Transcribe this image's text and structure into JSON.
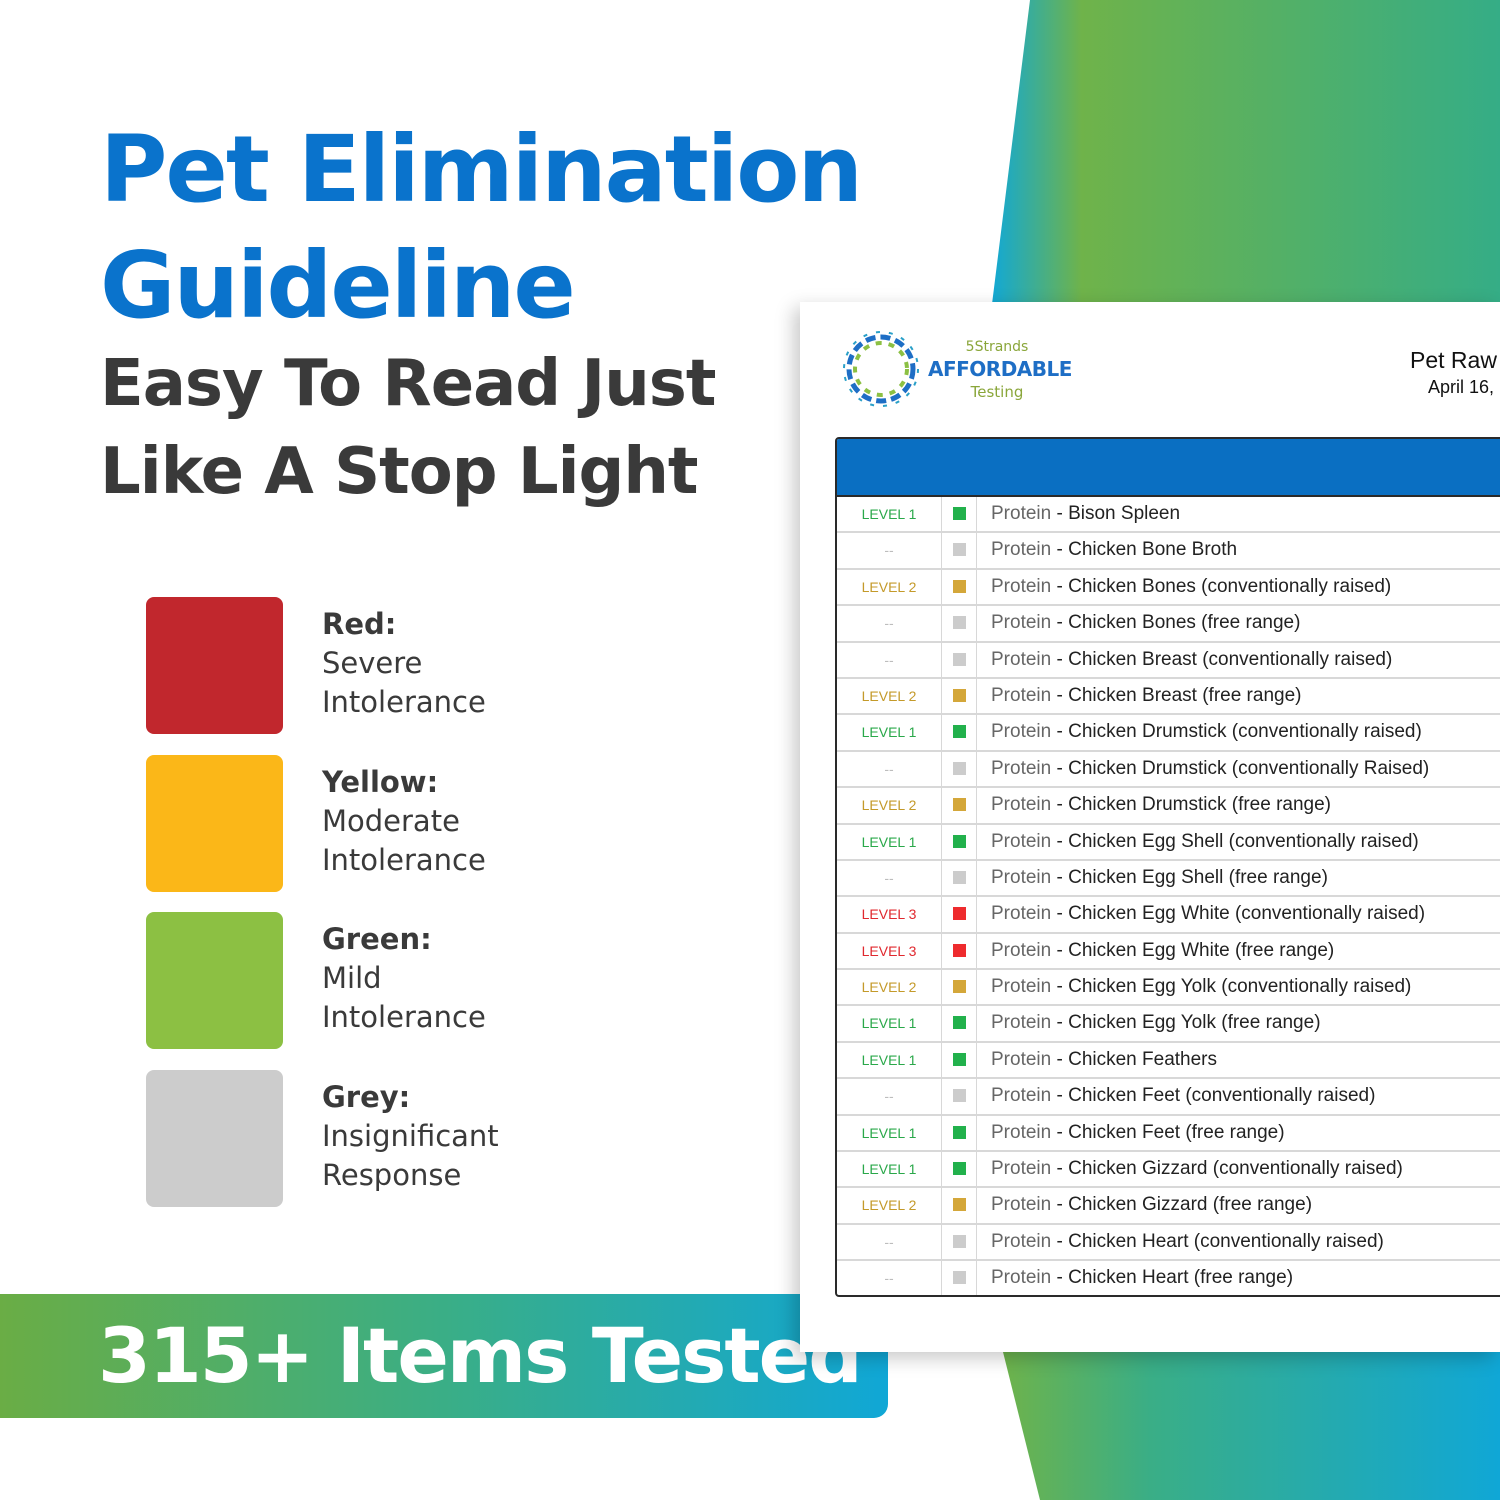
{
  "title_lines": [
    "Pet Elimination",
    "Guideline"
  ],
  "subtitle_lines": [
    "Easy To Read Just",
    "Like A Stop Light"
  ],
  "legend": [
    {
      "name": "Red:",
      "desc": [
        "Severe",
        "Intolerance"
      ],
      "color": "#c1272d"
    },
    {
      "name": "Yellow:",
      "desc": [
        "Moderate",
        "Intolerance"
      ],
      "color": "#fbb718"
    },
    {
      "name": "Green:",
      "desc": [
        "Mild",
        "Intolerance"
      ],
      "color": "#8cc043"
    },
    {
      "name": "Grey:",
      "desc": [
        "Insignificant",
        "Response"
      ],
      "color": "#cccccc"
    }
  ],
  "banner": {
    "text": "315+ Items Tested"
  },
  "report": {
    "brand_top": "5Strands",
    "brand_main": "AFFORDABLE",
    "brand_bottom": "Testing",
    "title": "Pet Raw",
    "date": "April 16,",
    "level_colors": {
      "LEVEL 1": "#2aa84a",
      "LEVEL 2": "#c49a2a",
      "LEVEL 3": "#e0282e",
      "--": "#bdbdbd"
    },
    "swatch_colors": {
      "LEVEL 1": "#22b14c",
      "LEVEL 2": "#d4a73a",
      "LEVEL 3": "#ee2b2e",
      "--": "#cccccc"
    },
    "rows": [
      {
        "level": "LEVEL 1",
        "category": "Protein",
        "item": "Bison Spleen"
      },
      {
        "level": "--",
        "category": "Protein",
        "item": "Chicken Bone Broth"
      },
      {
        "level": "LEVEL 2",
        "category": "Protein",
        "item": "Chicken Bones (conventionally raised)"
      },
      {
        "level": "--",
        "category": "Protein",
        "item": "Chicken Bones (free range)"
      },
      {
        "level": "--",
        "category": "Protein",
        "item": "Chicken Breast (conventionally raised)"
      },
      {
        "level": "LEVEL 2",
        "category": "Protein",
        "item": "Chicken Breast (free range)"
      },
      {
        "level": "LEVEL 1",
        "category": "Protein",
        "item": "Chicken Drumstick (conventionally raised)"
      },
      {
        "level": "--",
        "category": "Protein",
        "item": "Chicken Drumstick (conventionally Raised)"
      },
      {
        "level": "LEVEL 2",
        "category": "Protein",
        "item": "Chicken Drumstick (free range)"
      },
      {
        "level": "LEVEL 1",
        "category": "Protein",
        "item": "Chicken Egg Shell (conventionally raised)"
      },
      {
        "level": "--",
        "category": "Protein",
        "item": "Chicken Egg Shell (free range)"
      },
      {
        "level": "LEVEL 3",
        "category": "Protein",
        "item": "Chicken Egg White (conventionally raised)"
      },
      {
        "level": "LEVEL 3",
        "category": "Protein",
        "item": "Chicken Egg White (free range)"
      },
      {
        "level": "LEVEL 2",
        "category": "Protein",
        "item": "Chicken Egg Yolk (conventionally raised)"
      },
      {
        "level": "LEVEL 1",
        "category": "Protein",
        "item": "Chicken Egg Yolk (free range)"
      },
      {
        "level": "LEVEL 1",
        "category": "Protein",
        "item": "Chicken Feathers"
      },
      {
        "level": "--",
        "category": "Protein",
        "item": "Chicken Feet (conventionally raised)"
      },
      {
        "level": "LEVEL 1",
        "category": "Protein",
        "item": "Chicken Feet (free range)"
      },
      {
        "level": "LEVEL 1",
        "category": "Protein",
        "item": "Chicken Gizzard (conventionally raised)"
      },
      {
        "level": "LEVEL 2",
        "category": "Protein",
        "item": "Chicken Gizzard (free range)"
      },
      {
        "level": "--",
        "category": "Protein",
        "item": "Chicken Heart (conventionally raised)"
      },
      {
        "level": "--",
        "category": "Protein",
        "item": "Chicken Heart (free range)"
      }
    ]
  }
}
